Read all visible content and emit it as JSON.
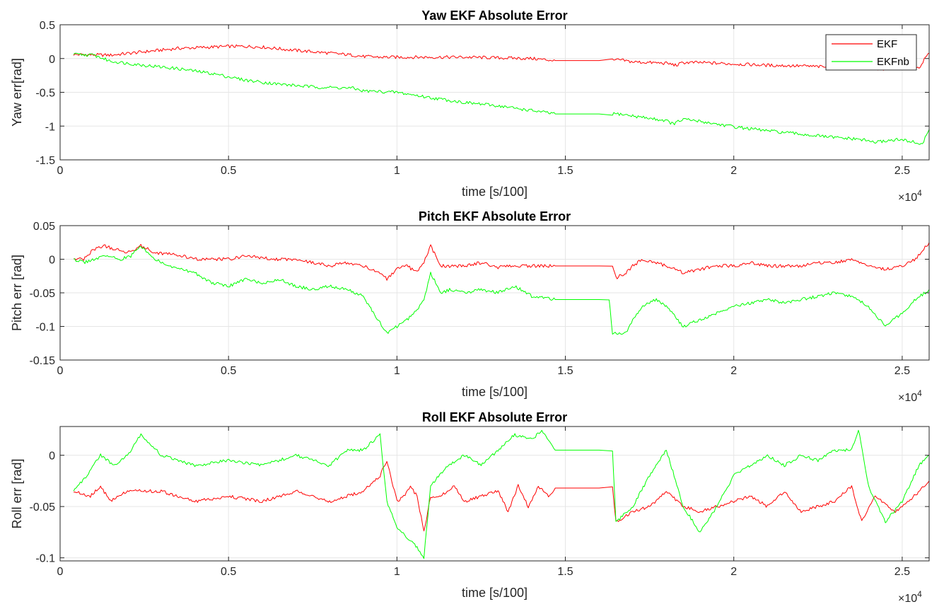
{
  "chart_data": [
    {
      "type": "line",
      "title": "Yaw EKF Absolute Error",
      "xlabel": "time [s/100]",
      "ylabel": "Yaw err[rad]",
      "x_multiplier": "×10",
      "x_multiplier_exp": "4",
      "xlim": [
        0,
        25800
      ],
      "ylim": [
        -1.5,
        0.5
      ],
      "xticks": [
        0,
        5000,
        10000,
        15000,
        20000,
        25000
      ],
      "xtick_labels": [
        "0",
        "0.5",
        "1",
        "1.5",
        "2",
        "2.5"
      ],
      "yticks": [
        0.5,
        0,
        -0.5,
        -1,
        -1.5
      ],
      "ytick_labels": [
        "0.5",
        "0",
        "-0.5",
        "-1",
        "-1.5"
      ],
      "grid": true,
      "legend": {
        "placement": "top-right",
        "entries": [
          "EKF",
          "EKFnb"
        ]
      },
      "series": [
        {
          "name": "EKF",
          "color": "#ff0000",
          "x": [
            400,
            1500,
            2500,
            3500,
            4500,
            5000,
            5500,
            6000,
            7000,
            8000,
            8700,
            9000,
            9500,
            10000,
            11000,
            12000,
            13000,
            14000,
            14700,
            15000,
            15500,
            16000,
            16400,
            16600,
            17000,
            18000,
            18300,
            18500,
            19000,
            20000,
            21000,
            22000,
            23000,
            23800,
            24200,
            24800,
            25200,
            25500,
            25800
          ],
          "y": [
            0.06,
            0.05,
            0.1,
            0.15,
            0.17,
            0.18,
            0.18,
            0.17,
            0.12,
            0.08,
            0.05,
            0.03,
            0.02,
            0.02,
            0.02,
            0.02,
            0.01,
            0.0,
            -0.03,
            -0.03,
            -0.03,
            -0.03,
            -0.03,
            -0.02,
            -0.05,
            -0.07,
            -0.1,
            -0.06,
            -0.06,
            -0.08,
            -0.1,
            -0.11,
            -0.13,
            -0.15,
            -0.16,
            -0.14,
            -0.15,
            -0.13,
            0.08
          ]
        },
        {
          "name": "EKFnb",
          "color": "#00ff00",
          "x": [
            400,
            1000,
            1500,
            2500,
            3500,
            4500,
            5500,
            6500,
            7500,
            8700,
            9000,
            9500,
            10000,
            11000,
            12000,
            13000,
            14000,
            14700,
            15000,
            15500,
            16000,
            16400,
            16600,
            17000,
            18000,
            18200,
            18500,
            19000,
            20000,
            21000,
            22000,
            23000,
            23800,
            24200,
            24800,
            25200,
            25600,
            25800
          ],
          "y": [
            0.06,
            0.05,
            -0.04,
            -0.1,
            -0.15,
            -0.22,
            -0.32,
            -0.38,
            -0.42,
            -0.44,
            -0.48,
            -0.49,
            -0.5,
            -0.58,
            -0.65,
            -0.7,
            -0.77,
            -0.82,
            -0.82,
            -0.82,
            -0.82,
            -0.82,
            -0.82,
            -0.85,
            -0.92,
            -0.97,
            -0.9,
            -0.93,
            -1.01,
            -1.07,
            -1.12,
            -1.17,
            -1.2,
            -1.24,
            -1.2,
            -1.22,
            -1.27,
            -1.05
          ]
        }
      ]
    },
    {
      "type": "line",
      "title": "Pitch EKF Absolute Error",
      "xlabel": "time [s/100]",
      "ylabel": "Pitch err [rad]",
      "x_multiplier": "×10",
      "x_multiplier_exp": "4",
      "xlim": [
        0,
        25800
      ],
      "ylim": [
        -0.15,
        0.05
      ],
      "xticks": [
        0,
        5000,
        10000,
        15000,
        20000,
        25000
      ],
      "xtick_labels": [
        "0",
        "0.5",
        "1",
        "1.5",
        "2",
        "2.5"
      ],
      "yticks": [
        0.05,
        0,
        -0.05,
        -0.1,
        -0.15
      ],
      "ytick_labels": [
        "0.05",
        "0",
        "-0.05",
        "-0.1",
        "-0.15"
      ],
      "grid": true,
      "series": [
        {
          "name": "EKF",
          "color": "#ff0000",
          "x": [
            400,
            700,
            1000,
            1300,
            1600,
            2000,
            2400,
            2800,
            3200,
            3600,
            4000,
            4500,
            5000,
            5500,
            6000,
            6500,
            7000,
            7500,
            8000,
            8500,
            9000,
            9500,
            9700,
            10000,
            10300,
            10600,
            10800,
            11000,
            11300,
            11600,
            12000,
            12500,
            13000,
            13500,
            14000,
            14700,
            15000,
            15500,
            16000,
            16400,
            16500,
            16800,
            17000,
            17300,
            17700,
            18000,
            18500,
            19000,
            19500,
            20000,
            20500,
            21000,
            21500,
            22000,
            22500,
            23000,
            23500,
            24000,
            24500,
            25000,
            25400,
            25800
          ],
          "y": [
            0.0,
            0.0,
            0.015,
            0.02,
            0.015,
            0.01,
            0.02,
            0.01,
            0.008,
            0.005,
            0.0,
            0.0,
            0.0,
            0.005,
            0.002,
            0.0,
            0.0,
            -0.005,
            -0.01,
            -0.005,
            -0.01,
            -0.02,
            -0.03,
            -0.015,
            -0.01,
            -0.02,
            -0.005,
            0.02,
            -0.01,
            -0.01,
            -0.01,
            -0.005,
            -0.012,
            -0.01,
            -0.01,
            -0.01,
            -0.01,
            -0.01,
            -0.01,
            -0.01,
            -0.028,
            -0.02,
            -0.01,
            0.0,
            -0.005,
            -0.01,
            -0.02,
            -0.015,
            -0.01,
            -0.01,
            -0.005,
            -0.01,
            -0.01,
            -0.01,
            -0.005,
            -0.005,
            0.0,
            -0.01,
            -0.015,
            -0.01,
            0.0,
            0.025
          ]
        },
        {
          "name": "EKFnb",
          "color": "#00ff00",
          "x": [
            400,
            700,
            1000,
            1400,
            1800,
            2100,
            2400,
            2800,
            3200,
            3600,
            4000,
            4500,
            5000,
            5500,
            6000,
            6500,
            7000,
            7500,
            8000,
            8500,
            9000,
            9300,
            9700,
            10000,
            10300,
            10600,
            10800,
            11000,
            11300,
            11600,
            12000,
            12500,
            13000,
            13500,
            14000,
            14700,
            15000,
            15500,
            16000,
            16300,
            16400,
            16800,
            17000,
            17300,
            17700,
            18000,
            18500,
            19000,
            19500,
            20000,
            20500,
            21000,
            21500,
            22000,
            22500,
            23000,
            23500,
            24000,
            24500,
            25000,
            25400,
            25800
          ],
          "y": [
            0.0,
            -0.005,
            0.0,
            0.005,
            0.0,
            0.005,
            0.02,
            0.0,
            -0.01,
            -0.015,
            -0.02,
            -0.035,
            -0.04,
            -0.03,
            -0.035,
            -0.03,
            -0.04,
            -0.045,
            -0.04,
            -0.045,
            -0.055,
            -0.08,
            -0.11,
            -0.1,
            -0.09,
            -0.075,
            -0.06,
            -0.02,
            -0.05,
            -0.045,
            -0.05,
            -0.045,
            -0.05,
            -0.04,
            -0.055,
            -0.06,
            -0.06,
            -0.06,
            -0.06,
            -0.06,
            -0.11,
            -0.11,
            -0.09,
            -0.07,
            -0.06,
            -0.07,
            -0.1,
            -0.09,
            -0.08,
            -0.07,
            -0.065,
            -0.06,
            -0.065,
            -0.06,
            -0.055,
            -0.05,
            -0.055,
            -0.07,
            -0.1,
            -0.08,
            -0.06,
            -0.045
          ]
        }
      ]
    },
    {
      "type": "line",
      "title": "Roll EKF Absolute Error",
      "xlabel": "time [s/100]",
      "ylabel": "Roll err [rad]",
      "x_multiplier": "×10",
      "x_multiplier_exp": "4",
      "xlim": [
        0,
        25800
      ],
      "ylim": [
        -0.103,
        0.028
      ],
      "xticks": [
        0,
        5000,
        10000,
        15000,
        20000,
        25000
      ],
      "xtick_labels": [
        "0",
        "0.5",
        "1",
        "1.5",
        "2",
        "2.5"
      ],
      "yticks": [
        0,
        -0.05,
        -0.1
      ],
      "ytick_labels": [
        "0",
        "-0.05",
        "-0.1"
      ],
      "grid": true,
      "series": [
        {
          "name": "EKF",
          "color": "#ff0000",
          "x": [
            400,
            900,
            1200,
            1500,
            2000,
            3000,
            4000,
            5000,
            6000,
            7000,
            8000,
            8500,
            9000,
            9500,
            9700,
            10000,
            10200,
            10400,
            10600,
            10800,
            11000,
            11300,
            11700,
            12000,
            12500,
            13000,
            13300,
            13600,
            13900,
            14200,
            14500,
            14700,
            15000,
            15500,
            16000,
            16400,
            16500,
            17000,
            17500,
            18000,
            18500,
            19000,
            19500,
            20000,
            20500,
            21000,
            21500,
            22000,
            22500,
            23000,
            23500,
            23800,
            24200,
            24800,
            25200,
            25800
          ],
          "y": [
            -0.035,
            -0.04,
            -0.03,
            -0.045,
            -0.035,
            -0.035,
            -0.045,
            -0.04,
            -0.045,
            -0.035,
            -0.045,
            -0.04,
            -0.035,
            -0.02,
            -0.005,
            -0.045,
            -0.04,
            -0.03,
            -0.04,
            -0.075,
            -0.04,
            -0.04,
            -0.03,
            -0.045,
            -0.04,
            -0.035,
            -0.055,
            -0.03,
            -0.05,
            -0.03,
            -0.04,
            -0.032,
            -0.032,
            -0.032,
            -0.032,
            -0.032,
            -0.065,
            -0.055,
            -0.05,
            -0.035,
            -0.05,
            -0.055,
            -0.05,
            -0.045,
            -0.04,
            -0.05,
            -0.035,
            -0.055,
            -0.05,
            -0.045,
            -0.03,
            -0.065,
            -0.04,
            -0.055,
            -0.045,
            -0.025
          ]
        },
        {
          "name": "EKFnb",
          "color": "#00ff00",
          "x": [
            400,
            800,
            1200,
            1600,
            2000,
            2400,
            3000,
            4000,
            5000,
            6000,
            7000,
            8000,
            8500,
            9000,
            9500,
            9700,
            10000,
            10300,
            10600,
            10800,
            11000,
            11500,
            12000,
            12500,
            13000,
            13500,
            14000,
            14300,
            14700,
            15000,
            15500,
            16000,
            16400,
            16500,
            17000,
            17500,
            18000,
            18500,
            19000,
            19500,
            20000,
            20500,
            21000,
            21500,
            22000,
            22500,
            23000,
            23500,
            23700,
            24000,
            24500,
            25000,
            25500,
            25800
          ],
          "y": [
            -0.035,
            -0.02,
            0.0,
            -0.01,
            0.0,
            0.02,
            0.0,
            -0.01,
            -0.005,
            -0.01,
            0.0,
            -0.01,
            0.005,
            0.005,
            0.02,
            -0.045,
            -0.07,
            -0.08,
            -0.09,
            -0.1,
            -0.03,
            -0.01,
            0.0,
            -0.01,
            0.005,
            0.02,
            0.015,
            0.025,
            0.005,
            0.005,
            0.005,
            0.005,
            0.005,
            -0.065,
            -0.05,
            -0.02,
            0.005,
            -0.05,
            -0.075,
            -0.05,
            -0.02,
            -0.01,
            0.0,
            -0.01,
            0.0,
            -0.005,
            0.005,
            0.005,
            0.025,
            -0.03,
            -0.065,
            -0.045,
            -0.01,
            0.0
          ]
        }
      ]
    }
  ]
}
